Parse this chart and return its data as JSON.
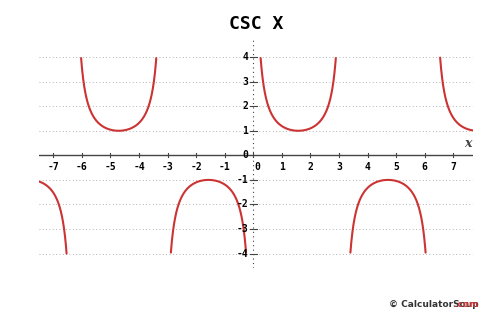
{
  "title": "CSC X",
  "title_fontsize": 13,
  "title_fontweight": "bold",
  "xlim": [
    -7.5,
    7.7
  ],
  "ylim": [
    -4.6,
    4.8
  ],
  "yticks": [
    -4,
    -3,
    -2,
    -1,
    0,
    1,
    2,
    3,
    4
  ],
  "xticks": [
    -7,
    -6,
    -5,
    -4,
    -3,
    -2,
    -1,
    0,
    1,
    2,
    3,
    4,
    5,
    6,
    7
  ],
  "clip_val": 4.0,
  "curve_color": "#cc3333",
  "curve_linewidth": 1.5,
  "background_color": "#ffffff",
  "grid_color": "#999999",
  "axis_color": "#444444",
  "watermark_color_main": "#333333",
  "watermark_color_com": "#cc3333",
  "xlabel": "x",
  "figsize": [
    4.88,
    3.12
  ],
  "dpi": 100
}
